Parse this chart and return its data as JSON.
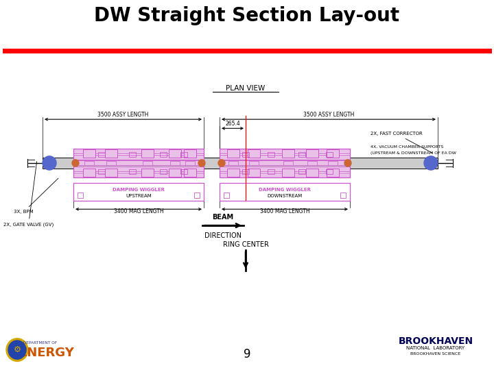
{
  "title": "DW Straight Section Lay-out",
  "title_fontsize": 20,
  "title_fontweight": "bold",
  "title_color": "#000000",
  "red_line_color": "#ff0000",
  "background_color": "#ffffff",
  "page_number": "9",
  "plan_view_label": "PLAN VIEW",
  "assy_length_label": "3500 ASSY LENGTH",
  "center_dim_label": "265.4",
  "mag_length_label": "3400 MAG LENGTH",
  "upstream_label": "DAMPING WIGGLER",
  "upstream_sub": "UPSTREAM",
  "downstream_label": "DAMPING WIGGLER",
  "downstream_sub": "DOWNSTREAM",
  "bpm_label": "3X, BPM",
  "gate_valve_label": "2X, GATE VALVE (GV)",
  "fast_corrector_label": "2X, FAST CORRECTOR",
  "vacuum_label_1": "4X, VACUUM CHAMBER SUPPORTS",
  "vacuum_label_2": "(UPSTREAM & DOWNSTREAM OF EA DW",
  "beam_label1": "BEAM",
  "beam_label2": "DIRECTION",
  "ring_center_label": "RING CENTER",
  "magnet_color": "#cc55cc",
  "magnet_fill": "#e8c0e8",
  "tube_color": "#999999",
  "tube_fill": "#cccccc",
  "connector_color": "#5566cc",
  "orange_color": "#cc6633",
  "diagram_line_color": "#000000",
  "dim_text_color": "#000000"
}
